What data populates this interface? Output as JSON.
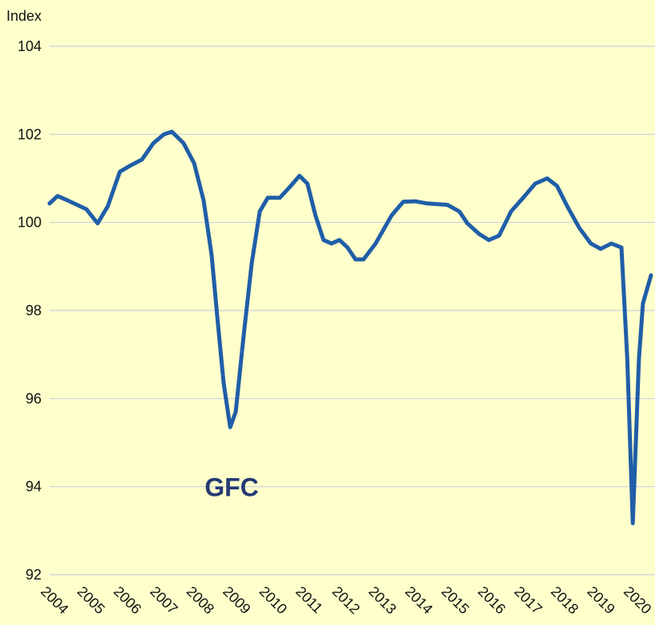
{
  "chart_data": {
    "type": "line",
    "y_label": "Index",
    "annotations": [
      {
        "text": "GFC",
        "x": 2009,
        "y": 94
      }
    ],
    "x": [
      2004.0,
      2004.22,
      2004.5,
      2004.83,
      2005.01,
      2005.32,
      2005.6,
      2005.93,
      2006.19,
      2006.54,
      2006.85,
      2007.14,
      2007.36,
      2007.68,
      2007.97,
      2008.23,
      2008.45,
      2008.61,
      2008.78,
      2008.96,
      2009.11,
      2009.33,
      2009.55,
      2009.77,
      2009.99,
      2010.32,
      2010.58,
      2010.86,
      2011.08,
      2011.3,
      2011.52,
      2011.74,
      2011.96,
      2012.18,
      2012.4,
      2012.62,
      2012.95,
      2013.39,
      2013.71,
      2014.04,
      2014.37,
      2014.92,
      2015.25,
      2015.47,
      2015.79,
      2016.06,
      2016.34,
      2016.67,
      2017.0,
      2017.33,
      2017.66,
      2017.93,
      2018.21,
      2018.54,
      2018.86,
      2019.13,
      2019.42,
      2019.7,
      2019.86,
      2020.01,
      2020.18,
      2020.29,
      2020.51
    ],
    "series": [
      {
        "name": "Index",
        "color": "#1f5ea8",
        "values": [
          100.43,
          100.6,
          100.5,
          100.37,
          100.3,
          99.98,
          100.37,
          101.15,
          101.28,
          101.43,
          101.8,
          102.0,
          102.06,
          101.8,
          101.34,
          100.5,
          99.25,
          97.8,
          96.35,
          95.35,
          95.7,
          97.44,
          99.07,
          100.25,
          100.56,
          100.56,
          100.79,
          101.06,
          100.88,
          100.16,
          99.6,
          99.52,
          99.6,
          99.43,
          99.16,
          99.16,
          99.52,
          100.16,
          100.47,
          100.48,
          100.43,
          100.4,
          100.25,
          99.98,
          99.74,
          99.6,
          99.7,
          100.25,
          100.56,
          100.88,
          101.0,
          100.83,
          100.37,
          99.88,
          99.52,
          99.4,
          99.52,
          99.43,
          96.9,
          93.17,
          96.9,
          98.16,
          98.8
        ]
      }
    ],
    "xlim": [
      2004,
      2020.62
    ],
    "xticks": [
      2004,
      2005,
      2006,
      2007,
      2008,
      2009,
      2010,
      2011,
      2012,
      2013,
      2014,
      2015,
      2016,
      2017,
      2018,
      2019,
      2020
    ],
    "ylim": [
      92,
      104
    ],
    "yticks": [
      92,
      94,
      96,
      98,
      100,
      102,
      104
    ],
    "grid": true
  }
}
